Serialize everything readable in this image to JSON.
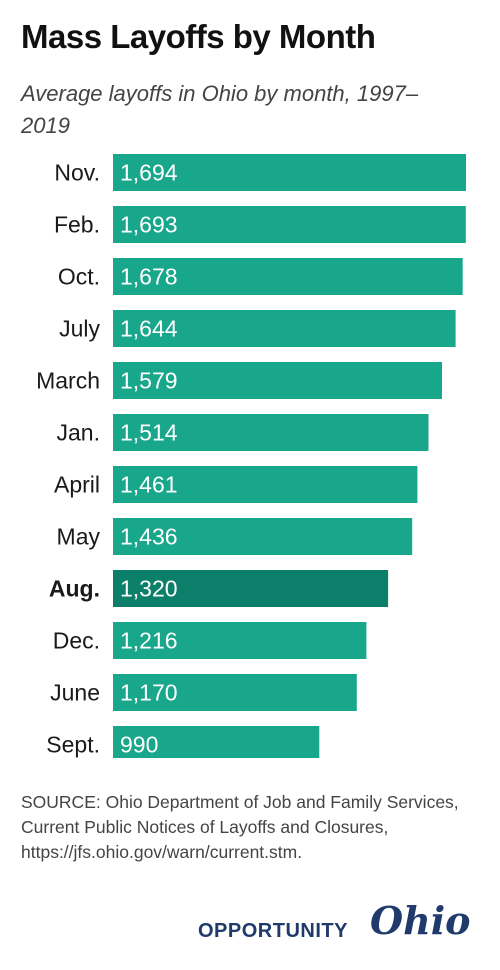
{
  "title": "Mass Layoffs by Month",
  "subtitle": "Average layoffs in Ohio by month, 1997–2019",
  "source": "SOURCE: Ohio Department of Job and Family Services, Current Public Notices of Layoffs and Closures, https://jfs.ohio.gov/warn/current.stm.",
  "brand": {
    "word": "OPPORTUNITY",
    "script": "Ohio"
  },
  "colors": {
    "bar": "#19a78b",
    "highlight_bar": "#0c7f6a",
    "bar_label": "#ffffff",
    "brand": "#1f3a6b"
  },
  "chart_data": {
    "type": "bar",
    "orientation": "horizontal",
    "categories": [
      "Nov.",
      "Feb.",
      "Oct.",
      "July",
      "March",
      "Jan.",
      "April",
      "May",
      "Aug.",
      "Dec.",
      "June",
      "Sept."
    ],
    "value_labels": [
      "1,694",
      "1,693",
      "1,678",
      "1,644",
      "1,579",
      "1,514",
      "1,461",
      "1,436",
      "1,320",
      "1,216",
      "1,170",
      "990"
    ],
    "values": [
      1694,
      1693,
      1678,
      1644,
      1579,
      1514,
      1461,
      1436,
      1320,
      1216,
      1170,
      990
    ],
    "highlight": "Aug.",
    "xlim": [
      0,
      1694
    ],
    "grid": false,
    "legend": "none"
  }
}
